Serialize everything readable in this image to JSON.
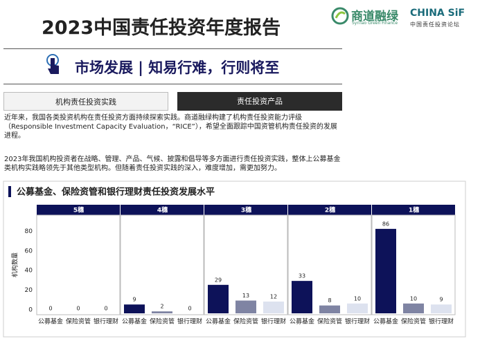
{
  "header": {
    "title": "2023中国责任投资年度报告",
    "logo1": {
      "name": "商道融绿",
      "sub": "SynTao Green Finance"
    },
    "logo2": {
      "name": "CHINA SiF",
      "sub": "中国责任投资论坛"
    }
  },
  "section": {
    "title": "市场发展 | 知易行难，行则将至"
  },
  "tabs": [
    "机构责任投资实践",
    "责任投资产品"
  ],
  "paragraphs": [
    "近年来，我国各类投资机构在责任投资方面持续探索实践。商道融绿构建了机构责任投资能力评级（Responsible Investment Capacity Evaluation，“RICE”），希望全面跟踪中国资管机构责任投资的发展进程。",
    "2023年我国机构投资者在战略、管理、产品、气候、披露和倡导等多方面进行责任投资实践，整体上公募基金类机构实践略领先于其他类型机构。但随着责任投资实践的深入，难度增加，需更加努力。"
  ],
  "chart_data": {
    "type": "bar",
    "title": "公募基金、保险资管和银行理财责任投资发展水平",
    "y_label": "机构数量",
    "categories": [
      "5穗",
      "4穗",
      "3穗",
      "2穗",
      "1穗"
    ],
    "series": [
      {
        "name": "公募基金",
        "color": "#0d1259",
        "values": [
          0,
          9,
          29,
          33,
          86
        ]
      },
      {
        "name": "保险资管",
        "color": "#7f84a3",
        "values": [
          0,
          2,
          13,
          8,
          10
        ]
      },
      {
        "name": "银行理财",
        "color": "#dde2ef",
        "values": [
          0,
          0,
          12,
          10,
          9
        ]
      }
    ],
    "ylim": [
      0,
      100
    ],
    "yticks": [
      0,
      20,
      40,
      60,
      80
    ],
    "grid": false
  }
}
